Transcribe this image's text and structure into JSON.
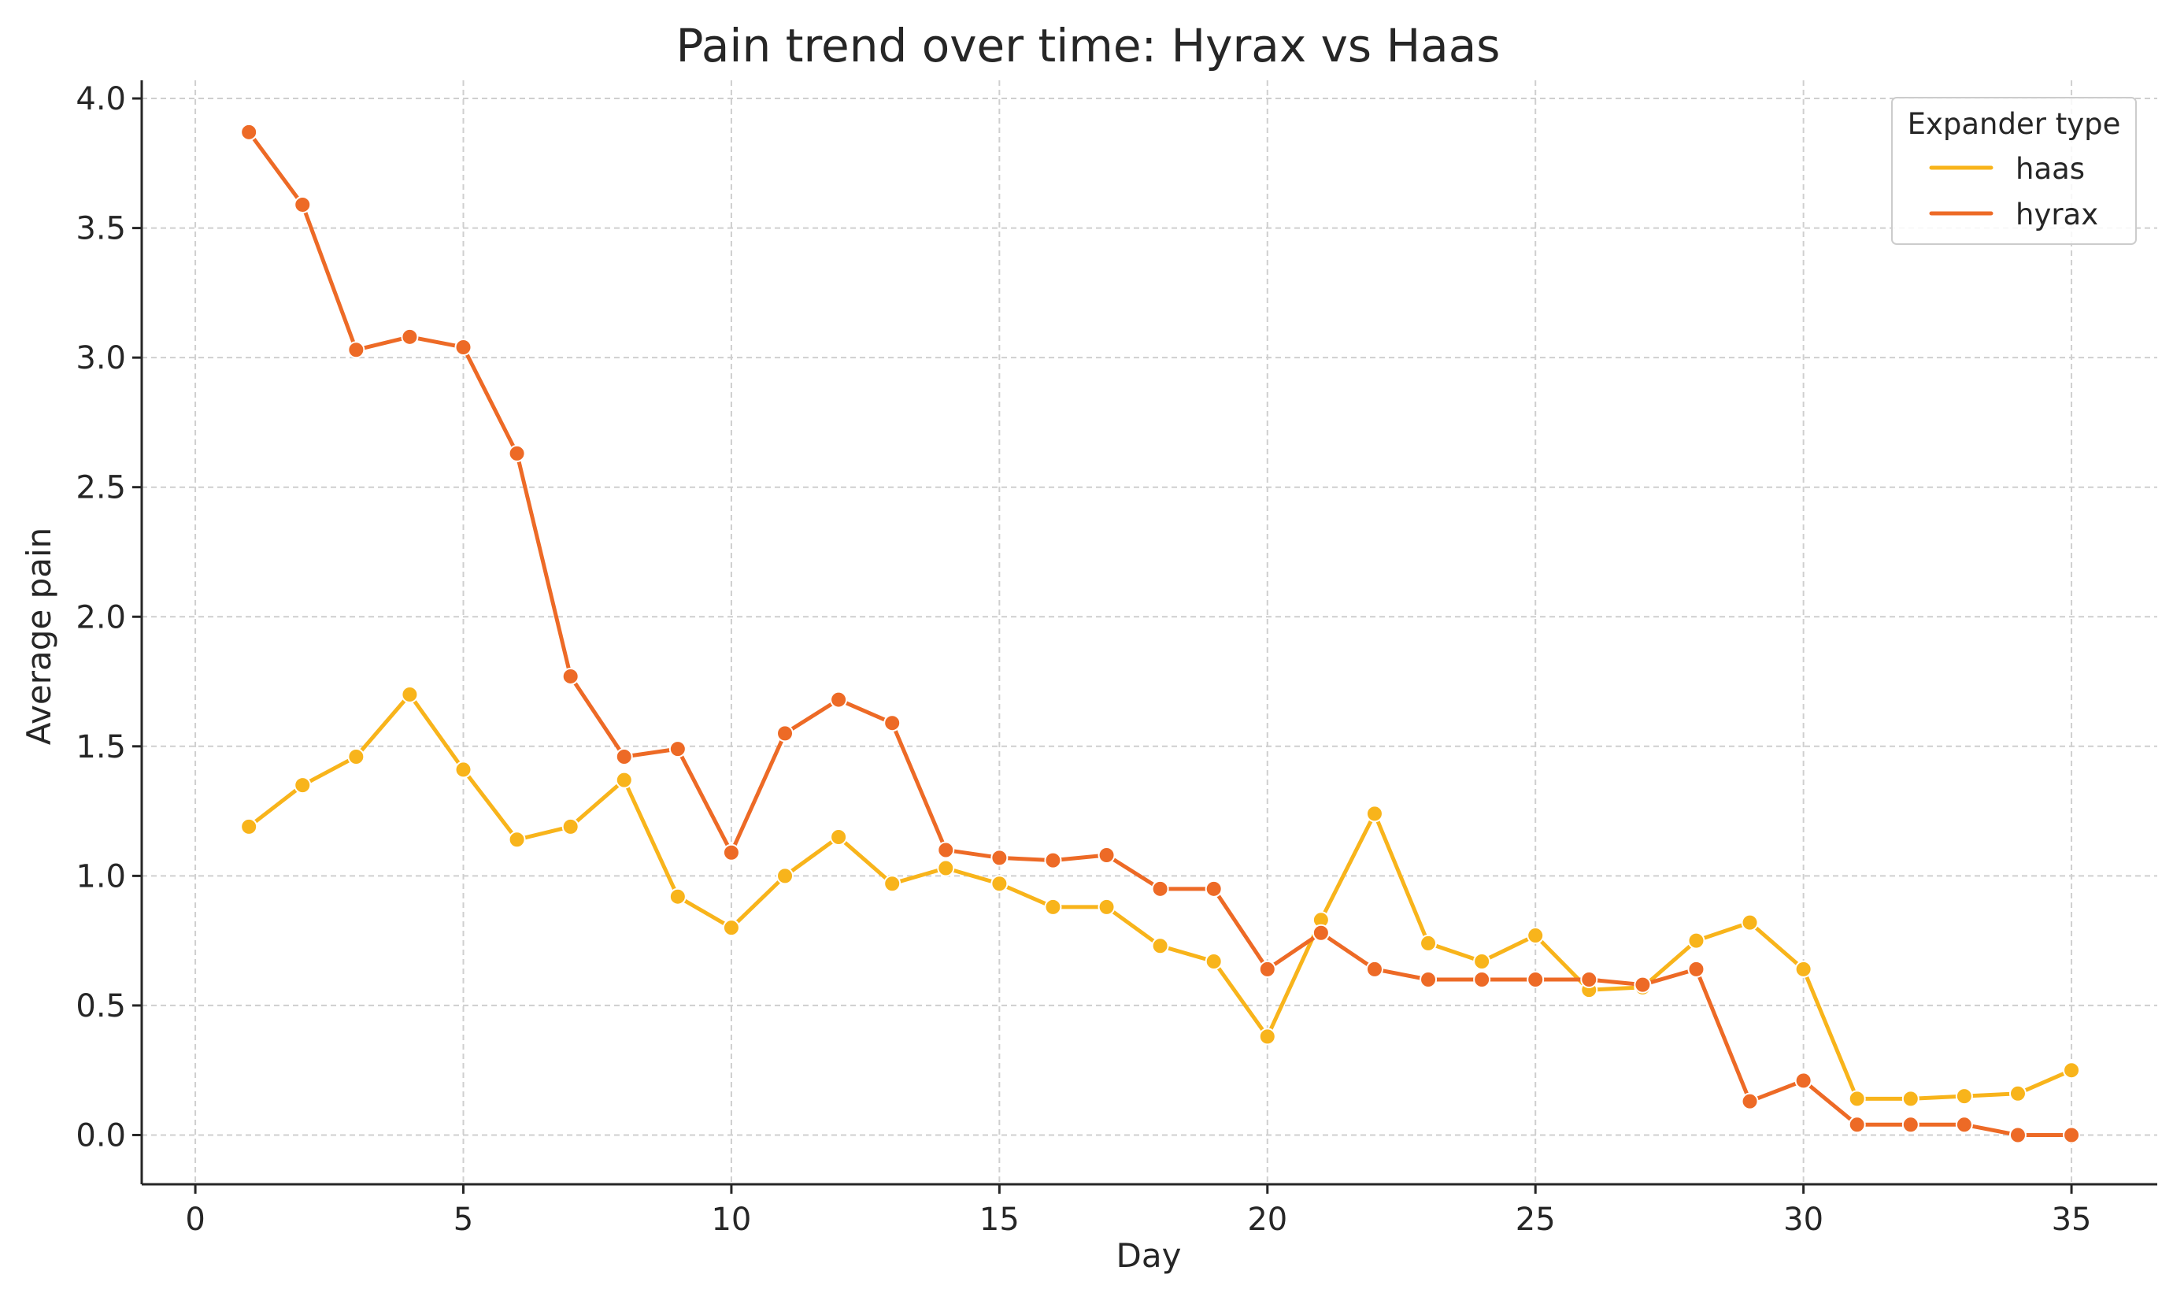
{
  "chart_data": {
    "type": "line",
    "title": "Pain trend over time: Hyrax vs Haas",
    "xlabel": "Day",
    "ylabel": "Average pain",
    "xlim": [
      -1,
      36.6
    ],
    "ylim": [
      -0.19,
      4.07
    ],
    "xticks": [
      0,
      5,
      10,
      15,
      20,
      25,
      30,
      35
    ],
    "xtick_labels": [
      "0",
      "5",
      "10",
      "15",
      "20",
      "25",
      "30",
      "35"
    ],
    "yticks": [
      0.0,
      0.5,
      1.0,
      1.5,
      2.0,
      2.5,
      3.0,
      3.5,
      4.0
    ],
    "ytick_labels": [
      "0.0",
      "0.5",
      "1.0",
      "1.5",
      "2.0",
      "2.5",
      "3.0",
      "3.5",
      "4.0"
    ],
    "grid": true,
    "legend": {
      "title": "Expander type",
      "placement": "top-right"
    },
    "x": [
      1,
      2,
      3,
      4,
      5,
      6,
      7,
      8,
      9,
      10,
      11,
      12,
      13,
      14,
      15,
      16,
      17,
      18,
      19,
      20,
      21,
      22,
      23,
      24,
      25,
      26,
      27,
      28,
      29,
      30,
      31,
      32,
      33,
      34,
      35
    ],
    "series": [
      {
        "name": "haas",
        "color": "#f8b41b",
        "values": [
          1.19,
          1.35,
          1.46,
          1.7,
          1.41,
          1.14,
          1.19,
          1.37,
          0.92,
          0.8,
          1.0,
          1.15,
          0.97,
          1.03,
          0.97,
          0.88,
          0.88,
          0.73,
          0.67,
          0.38,
          0.83,
          1.24,
          0.74,
          0.67,
          0.77,
          0.56,
          0.57,
          0.75,
          0.82,
          0.64,
          0.14,
          0.14,
          0.15,
          0.16,
          0.25
        ]
      },
      {
        "name": "hyrax",
        "color": "#ed6a26",
        "values": [
          3.87,
          3.59,
          3.03,
          3.08,
          3.04,
          2.63,
          1.77,
          1.46,
          1.49,
          1.09,
          1.55,
          1.68,
          1.59,
          1.1,
          1.07,
          1.06,
          1.08,
          0.95,
          0.95,
          0.64,
          0.78,
          0.64,
          0.6,
          0.6,
          0.6,
          0.6,
          0.58,
          0.64,
          0.13,
          0.21,
          0.04,
          0.04,
          0.04,
          0.0,
          0.0
        ]
      }
    ]
  }
}
